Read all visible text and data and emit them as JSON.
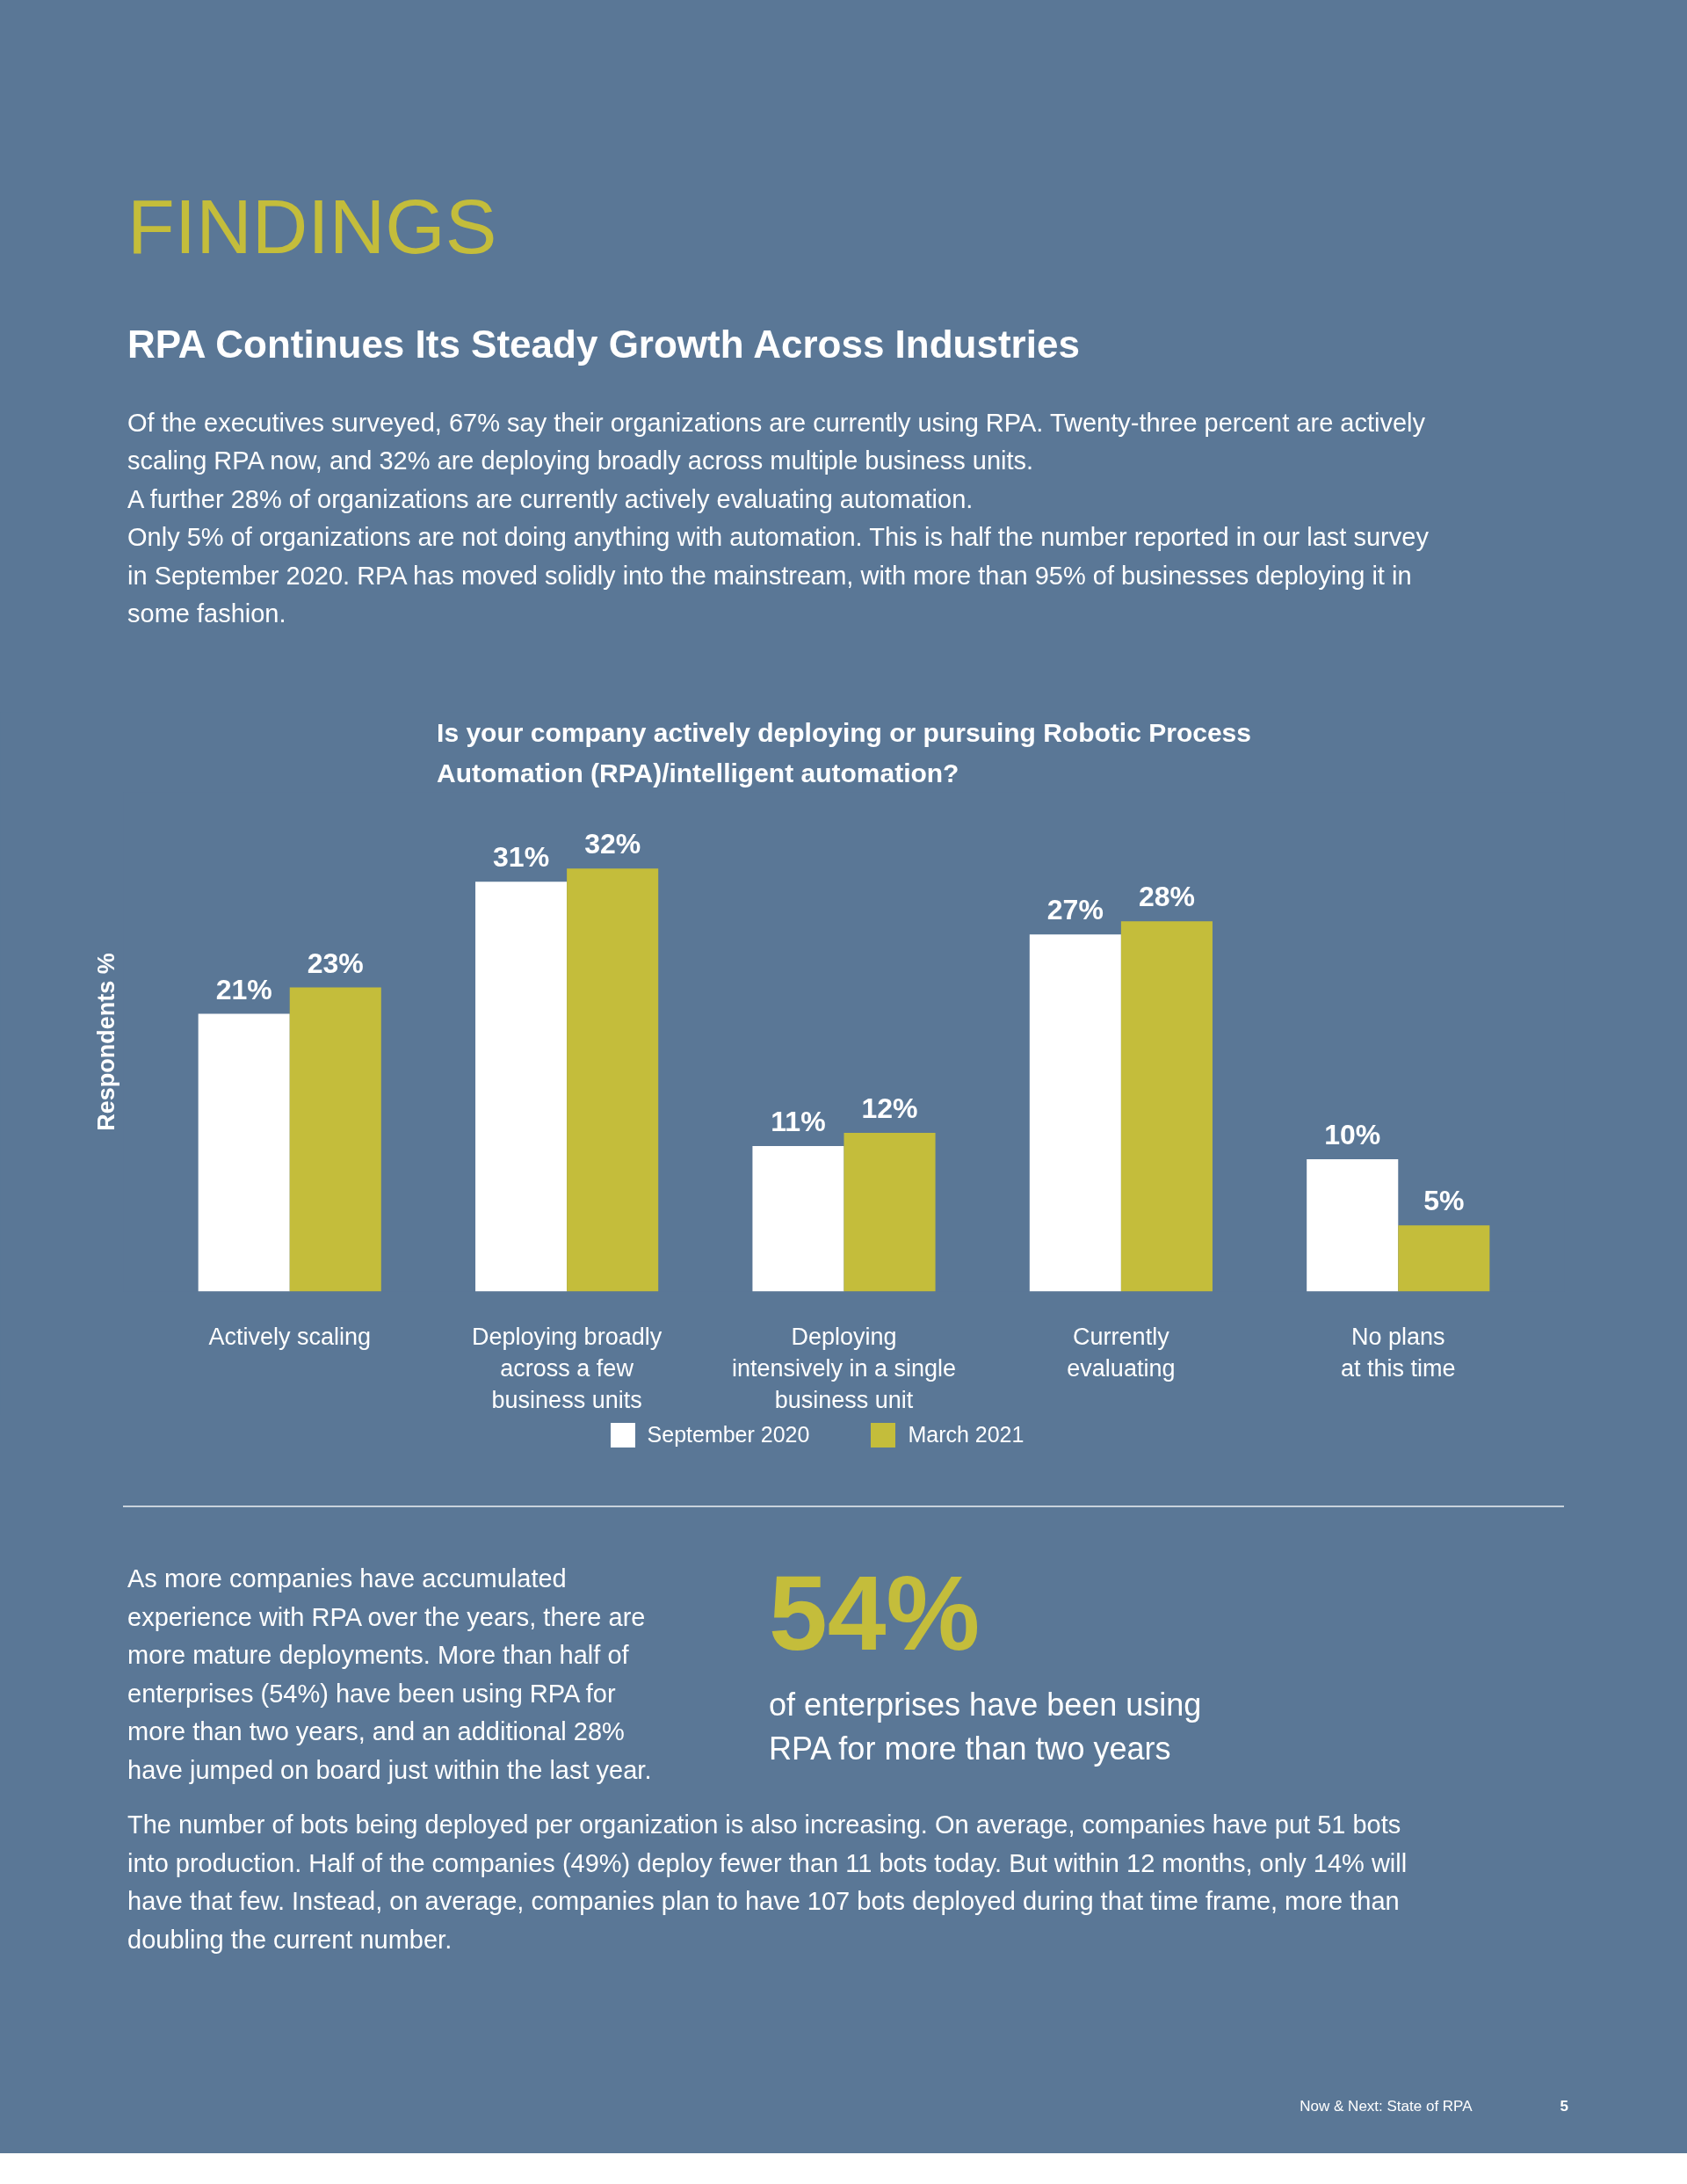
{
  "chart_data": {
    "type": "bar",
    "title": "Is your company actively deploying or pursuing Robotic Process\nAutomation (RPA)/intelligent automation?",
    "ylabel": "Respondents %",
    "categories": [
      "Actively scaling",
      "Deploying broadly\nacross a few\nbusiness units",
      "Deploying\nintensively in a single\nbusiness unit",
      "Currently\nevaluating",
      "No plans\nat this time"
    ],
    "series": [
      {
        "name": "September 2020",
        "color": "#ffffff",
        "values": [
          21,
          31,
          11,
          27,
          10
        ],
        "value_labels": [
          "21%",
          "31%",
          "11%",
          "27%",
          "10%"
        ]
      },
      {
        "name": "March 2021",
        "color": "#c4bd3b",
        "values": [
          23,
          32,
          12,
          28,
          5
        ],
        "value_labels": [
          "23%",
          "32%",
          "12%",
          "28%",
          "5%"
        ]
      }
    ],
    "legend": "bottom",
    "annotations": [
      "FINDINGS",
      "RPA Continues Its Steady Growth Across Industries",
      "Of the executives surveyed, 67% say their organizations are currently using RPA. Twenty-three percent are actively scaling RPA now, and 32% are deploying broadly across multiple business units.",
      "A further 28% of organizations are currently actively evaluating automation.",
      "Only 5% of organizations are not doing anything with automation. This is half the number reported in our last survey in September 2020. RPA has moved solidly into the mainstream, with more than 95% of businesses deploying it in some fashion.",
      "As more companies have accumulated experience with RPA over the years, there are more mature deployments. More than half of enterprises (54%) have been using RPA for more than two years, and an additional 28% have jumped on board just within the last year.",
      "54%",
      "of enterprises have been using RPA for more than two years",
      "The number of bots being deployed per organization is also increasing. On average, companies have put 51 bots into production. Half of the companies (49%) deploy fewer than 11 bots today. But within 12 months, only 14% will have that few. Instead, on average, companies plan to have 107 bots deployed during that time frame, more than doubling the current number.",
      "Now & Next: State of RPA",
      "5"
    ]
  }
}
